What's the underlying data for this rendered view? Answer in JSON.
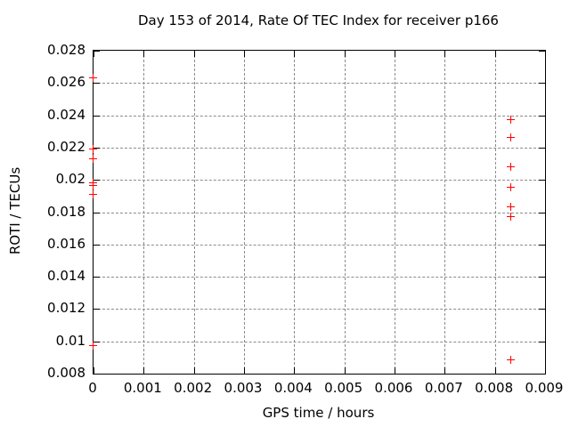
{
  "chart_data": {
    "type": "scatter",
    "title": "Day 153 of 2014, Rate Of TEC Index for receiver p166",
    "xlabel": "GPS time / hours",
    "ylabel": "ROTI / TECUs",
    "xlim": [
      0,
      0.009
    ],
    "ylim": [
      0.008,
      0.028
    ],
    "grid": true,
    "legend": "none",
    "marker": "plus",
    "marker_color": "#ff0000",
    "grid_color": "#8c8c8c",
    "x_ticks": [
      0,
      0.001,
      0.002,
      0.003,
      0.004,
      0.005,
      0.006,
      0.007,
      0.008,
      0.009
    ],
    "x_tick_labels": [
      "0",
      "0.001",
      "0.002",
      "0.003",
      "0.004",
      "0.005",
      "0.006",
      "0.007",
      "0.008",
      "0.009"
    ],
    "y_ticks": [
      0.008,
      0.01,
      0.012,
      0.014,
      0.016,
      0.018,
      0.02,
      0.022,
      0.024,
      0.026,
      0.028
    ],
    "y_tick_labels": [
      "0.008",
      "0.01",
      "0.012",
      "0.014",
      "0.016",
      "0.018",
      "0.02",
      "0.022",
      "0.024",
      "0.026",
      "0.028"
    ],
    "series": [
      {
        "name": "ROTI",
        "points": [
          [
            0,
            0.0263
          ],
          [
            0,
            0.0219
          ],
          [
            0,
            0.0213
          ],
          [
            0,
            0.0198
          ],
          [
            0,
            0.0196
          ],
          [
            0,
            0.0191
          ],
          [
            0,
            0.0097
          ],
          [
            0.00833,
            0.0237
          ],
          [
            0.00833,
            0.0226
          ],
          [
            0.00833,
            0.0208
          ],
          [
            0.00833,
            0.0195
          ],
          [
            0.00833,
            0.0183
          ],
          [
            0.00833,
            0.0177
          ],
          [
            0.00833,
            0.0088
          ]
        ]
      }
    ]
  }
}
